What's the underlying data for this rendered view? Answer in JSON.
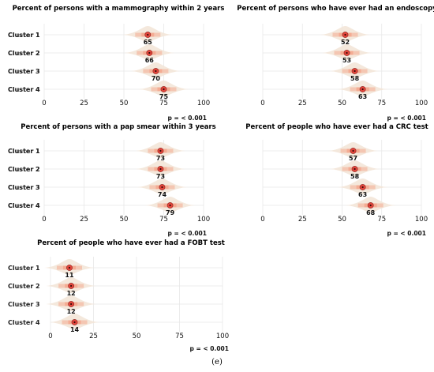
{
  "figure_caption": "(e)",
  "colors": {
    "violin": "#f3e6d8",
    "ci_band": "#f4a98f",
    "point": "#e3463c",
    "grid": "#e8e8e8"
  },
  "chart_data": [
    {
      "type": "point-interval",
      "title": "Percent of persons with a mammography within 2 years",
      "categories": [
        "Cluster 1",
        "Cluster 2",
        "Cluster 3",
        "Cluster 4"
      ],
      "values": [
        65,
        66,
        70,
        75
      ],
      "value_labels": [
        "65",
        "66",
        "70",
        "75"
      ],
      "xlim": [
        0,
        100
      ],
      "xticks": [
        0,
        25,
        50,
        75,
        100
      ],
      "grid": true,
      "p_value": "p = < 0.001"
    },
    {
      "type": "point-interval",
      "title": "Percent of persons who have ever had an endoscopy",
      "categories": [
        "Cluster 1",
        "Cluster 2",
        "Cluster 3",
        "Cluster 4"
      ],
      "values": [
        52,
        53,
        58,
        63
      ],
      "value_labels": [
        "52",
        "53",
        "58",
        "63"
      ],
      "xlim": [
        0,
        100
      ],
      "xticks": [
        0,
        25,
        50,
        75,
        100
      ],
      "grid": true,
      "p_value": "p = < 0.001"
    },
    {
      "type": "point-interval",
      "title": "Percent of persons with a pap smear within 3 years",
      "categories": [
        "Cluster 1",
        "Cluster 2",
        "Cluster 3",
        "Cluster 4"
      ],
      "values": [
        73,
        73,
        74,
        79
      ],
      "value_labels": [
        "73",
        "73",
        "74",
        "79"
      ],
      "xlim": [
        0,
        100
      ],
      "xticks": [
        0,
        25,
        50,
        75,
        100
      ],
      "grid": true,
      "p_value": "p = < 0.001"
    },
    {
      "type": "point-interval",
      "title": "Percent of people who have ever had a CRC test",
      "categories": [
        "Cluster 1",
        "Cluster 2",
        "Cluster 3",
        "Cluster 4"
      ],
      "values": [
        57,
        58,
        63,
        68
      ],
      "value_labels": [
        "57",
        "58",
        "63",
        "68"
      ],
      "xlim": [
        0,
        100
      ],
      "xticks": [
        0,
        25,
        50,
        75,
        100
      ],
      "grid": true,
      "p_value": "p = < 0.001"
    },
    {
      "type": "point-interval",
      "title": "Percent of people who have ever had a FOBT test",
      "categories": [
        "Cluster 1",
        "Cluster 2",
        "Cluster 3",
        "Cluster 4"
      ],
      "values": [
        11,
        12,
        12,
        14
      ],
      "value_labels": [
        "11",
        "12",
        "12",
        "14"
      ],
      "xlim": [
        0,
        100
      ],
      "xticks": [
        0,
        25,
        50,
        75,
        100
      ],
      "grid": true,
      "p_value": "p = < 0.001"
    }
  ]
}
